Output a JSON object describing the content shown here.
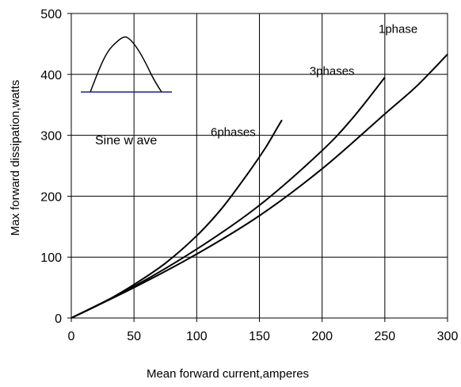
{
  "chart_data": {
    "type": "line",
    "title": "",
    "xlabel": "Mean forward  current,amperes",
    "ylabel": "Max forward  dissipation,watts",
    "xlim": [
      0,
      300
    ],
    "ylim": [
      0,
      500
    ],
    "x_ticks": [
      "0",
      "50",
      "100",
      "150",
      "200",
      "250",
      "300"
    ],
    "y_ticks": [
      "0",
      "100",
      "200",
      "300",
      "400",
      "500"
    ],
    "grid": true,
    "legend": "none",
    "series": [
      {
        "name": "6phases",
        "color": "#000000",
        "points": [
          [
            0,
            0
          ],
          [
            25,
            25
          ],
          [
            50,
            55
          ],
          [
            75,
            90
          ],
          [
            100,
            135
          ],
          [
            120,
            180
          ],
          [
            140,
            235
          ],
          [
            155,
            280
          ],
          [
            165,
            315
          ],
          [
            168,
            325
          ]
        ]
      },
      {
        "name": "3phases",
        "color": "#000000",
        "points": [
          [
            0,
            0
          ],
          [
            50,
            52
          ],
          [
            100,
            113
          ],
          [
            150,
            185
          ],
          [
            200,
            275
          ],
          [
            225,
            330
          ],
          [
            250,
            395
          ]
        ]
      },
      {
        "name": "1phase",
        "color": "#000000",
        "points": [
          [
            0,
            0
          ],
          [
            50,
            50
          ],
          [
            100,
            105
          ],
          [
            150,
            168
          ],
          [
            200,
            245
          ],
          [
            250,
            335
          ],
          [
            275,
            380
          ],
          [
            300,
            433
          ]
        ]
      }
    ],
    "inset": {
      "label": "Sine w ave",
      "curve_color": "#000000",
      "baseline_color": "#1f1f8f"
    }
  }
}
